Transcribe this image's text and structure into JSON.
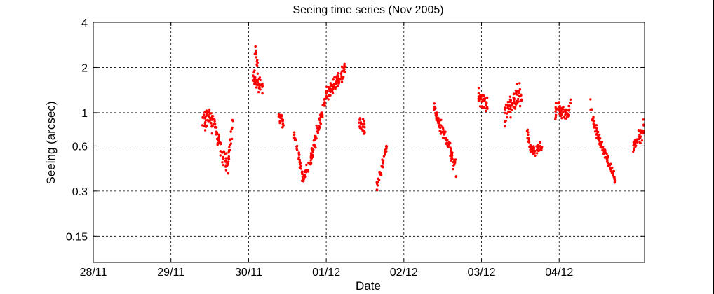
{
  "chart_data": {
    "type": "scatter",
    "title": "Seeing time series (Nov 2005)",
    "xlabel": "Date",
    "ylabel": "Seeing (arcsec)",
    "x_unit": "days",
    "x_ticks": [
      "28/11",
      "29/11",
      "30/11",
      "01/12",
      "02/12",
      "03/12",
      "04/12"
    ],
    "x_tick_values": [
      0,
      1,
      2,
      3,
      4,
      5,
      6
    ],
    "xlim": [
      0,
      7.1
    ],
    "yscale": "log",
    "y_ticks": [
      0.15,
      0.3,
      0.6,
      1,
      2,
      4
    ],
    "y_tick_labels": [
      "0.15",
      "0.3",
      "0.6",
      "1",
      "2",
      "4"
    ],
    "ylim": [
      0.1,
      4
    ],
    "grid": true,
    "grid_style": "dashed",
    "marker_color": "#ff0000",
    "series": [
      {
        "segments": [
          {
            "x": [
              1.4,
              1.5,
              1.58,
              1.66,
              1.74
            ],
            "y": [
              0.85,
              0.95,
              0.75,
              0.55,
              0.45
            ],
            "spread": 0.18
          },
          {
            "x": [
              1.74,
              1.8
            ],
            "y": [
              0.5,
              0.9
            ],
            "spread": 0.2
          },
          {
            "x": [
              2.05,
              2.1,
              2.18
            ],
            "y": [
              1.7,
              1.6,
              1.4
            ],
            "spread": 0.18
          },
          {
            "x": [
              2.08,
              2.12
            ],
            "y": [
              2.6,
              2.0
            ],
            "spread": 0.2
          },
          {
            "x": [
              2.38,
              2.45
            ],
            "y": [
              0.95,
              0.85
            ],
            "spread": 0.15
          },
          {
            "x": [
              2.58,
              2.65,
              2.7,
              2.78,
              2.85
            ],
            "y": [
              0.75,
              0.5,
              0.36,
              0.45,
              0.6
            ],
            "spread": 0.1
          },
          {
            "x": [
              2.8,
              2.9,
              3.0,
              3.1,
              3.2,
              3.25
            ],
            "y": [
              0.5,
              0.8,
              1.3,
              1.5,
              1.8,
              2.0
            ],
            "spread": 0.15
          },
          {
            "x": [
              3.42,
              3.5
            ],
            "y": [
              0.85,
              0.8
            ],
            "spread": 0.15
          },
          {
            "x": [
              3.65,
              3.7,
              3.78
            ],
            "y": [
              0.32,
              0.4,
              0.6
            ],
            "spread": 0.1
          },
          {
            "x": [
              4.38,
              4.42,
              4.5,
              4.58,
              4.68
            ],
            "y": [
              1.2,
              0.95,
              0.75,
              0.6,
              0.4
            ],
            "spread": 0.15
          },
          {
            "x": [
              4.95,
              5.0,
              5.08
            ],
            "y": [
              1.3,
              1.2,
              1.1
            ],
            "spread": 0.15
          },
          {
            "x": [
              5.3,
              5.35,
              5.45,
              5.52
            ],
            "y": [
              1.0,
              1.1,
              1.3,
              1.2
            ],
            "spread": 0.25
          },
          {
            "x": [
              5.58,
              5.62,
              5.7,
              5.78
            ],
            "y": [
              0.8,
              0.6,
              0.55,
              0.6
            ],
            "spread": 0.1
          },
          {
            "x": [
              5.95,
              6.0,
              6.08,
              6.15
            ],
            "y": [
              1.0,
              1.1,
              1.0,
              1.1
            ],
            "spread": 0.15
          },
          {
            "x": [
              6.4,
              6.45,
              6.55,
              6.65,
              6.72
            ],
            "y": [
              1.1,
              0.85,
              0.6,
              0.45,
              0.36
            ],
            "spread": 0.12
          },
          {
            "x": [
              6.95,
              7.05,
              7.1
            ],
            "y": [
              0.6,
              0.7,
              0.85
            ],
            "spread": 0.15
          }
        ]
      }
    ]
  }
}
